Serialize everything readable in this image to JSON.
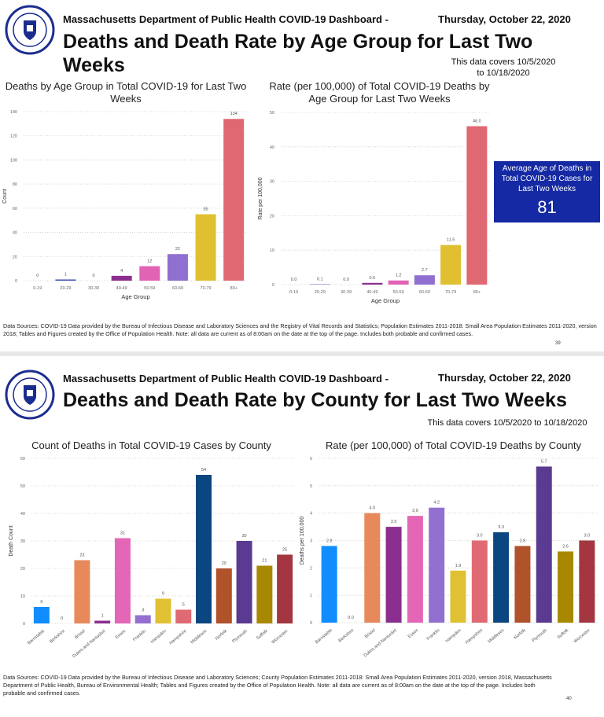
{
  "page1": {
    "header": "Massachusetts Department of Public Health COVID-19 Dashboard -",
    "date": "Thursday, October 22, 2020",
    "title": "Deaths and Death Rate by Age Group for Last Two Weeks",
    "covers": "This data covers 10/5/2020 to 10/18/2020",
    "average_box": {
      "label": "Average Age of Deaths in Total COVID-19 Cases for Last Two Weeks",
      "value": "81",
      "color": "#1429a3"
    },
    "footnote": "Data Sources: COVID-19 Data provided by the Bureau of Infectious Disease and Laboratory Sciences and the Registry of Vital Records and Statistics; Population Estimates 2011-2018: Small Area Population Estimates 2011-2020, version 2018; Tables and Figures created by the Office of Population Health. Note: all data are current as of 8:00am on the date at the top of the page. Includes both probable and confirmed cases.",
    "page_number": "39"
  },
  "page2": {
    "header": "Massachusetts Department of Public Health COVID-19 Dashboard -",
    "date": "Thursday, October 22, 2020",
    "title": "Deaths and Death Rate by County for Last Two Weeks",
    "covers": "This data covers 10/5/2020 to 10/18/2020",
    "footnote": "Data Sources: COVID-19 Data provided by the Bureau of Infectious Disease and Laboratory Sciences; County Population Estimates 2011-2018: Small Area Population Estimates 2011-2020, version 2018, Massachusetts Department of Public Health, Bureau of Environmental Health; Tables and Figures created by the Office of Population Health. Note: all data are current as of 8:00am on the date at the top of the page. Includes both probable and confirmed cases.",
    "page_number": "40"
  },
  "chart_data": [
    {
      "type": "bar",
      "title": "Deaths by Age Group in Total COVID-19 for Last Two Weeks",
      "xlabel": "Age Group",
      "ylabel": "Count",
      "ylim": [
        0,
        140
      ],
      "yticks": [
        0,
        20,
        40,
        60,
        80,
        100,
        120,
        140
      ],
      "grid": true,
      "categories": [
        "0-19",
        "20-29",
        "30-39",
        "40-49",
        "50-59",
        "60-69",
        "70-79",
        "80+"
      ],
      "values": [
        0,
        1,
        0,
        4,
        12,
        22,
        55,
        134
      ],
      "labels": [
        "0",
        "1",
        "0",
        "4",
        "12",
        "22",
        "55",
        "134"
      ],
      "colors": [
        "#3f51b5",
        "#3f51b5",
        "#3f51b5",
        "#8b2f8f",
        "#e164b4",
        "#8f6fcf",
        "#e0c030",
        "#df6872"
      ]
    },
    {
      "type": "bar",
      "title": "Rate (per 100,000) of Total COVID-19 Deaths by Age Group for Last Two Weeks",
      "xlabel": "Age Group",
      "ylabel": "Rate per 100,000",
      "ylim": [
        0,
        50
      ],
      "yticks": [
        0,
        10,
        20,
        30,
        40,
        50
      ],
      "grid": true,
      "categories": [
        "0-19",
        "20-29",
        "30-39",
        "40-49",
        "50-59",
        "60-69",
        "70-79",
        "80+"
      ],
      "values": [
        0.0,
        0.1,
        0.0,
        0.5,
        1.2,
        2.7,
        11.5,
        46.0
      ],
      "labels": [
        "0.0",
        "0.1",
        "0.0",
        "0.5",
        "1.2",
        "2.7",
        "11.5",
        "46.0"
      ],
      "colors": [
        "#3f51b5",
        "#3f51b5",
        "#3f51b5",
        "#8b2f8f",
        "#e164b4",
        "#8f6fcf",
        "#e0c030",
        "#df6872"
      ]
    },
    {
      "type": "bar",
      "title": "Count of Deaths in Total COVID-19 Cases by County",
      "xlabel": "",
      "ylabel": "Death Count",
      "ylim": [
        0,
        60
      ],
      "yticks": [
        0,
        10,
        20,
        30,
        40,
        50,
        60
      ],
      "grid": true,
      "categories": [
        "Barnstable",
        "Berkshire",
        "Bristol",
        "Dukes and Nantucket",
        "Essex",
        "Franklin",
        "Hampden",
        "Hampshire",
        "Middlesex",
        "Norfolk",
        "Plymouth",
        "Suffolk",
        "Worcester"
      ],
      "values": [
        6,
        0,
        23,
        1,
        31,
        3,
        9,
        5,
        54,
        20,
        30,
        21,
        25
      ],
      "labels": [
        "6",
        "0",
        "23",
        "1",
        "31",
        "3",
        "9",
        "5",
        "54",
        "20",
        "30",
        "21",
        "25"
      ],
      "colors": [
        "#118dff",
        "#118dff",
        "#e8895c",
        "#8a2f90",
        "#e466b6",
        "#9370d0",
        "#e1c134",
        "#e06a74",
        "#0b4680",
        "#b0532a",
        "#5b3a91",
        "#a88800",
        "#a33640"
      ]
    },
    {
      "type": "bar",
      "title": "Rate (per 100,000) of Total COVID-19 Deaths by County",
      "xlabel": "",
      "ylabel": "Deaths per 100,000",
      "ylim": [
        0,
        6
      ],
      "yticks": [
        0,
        1,
        2,
        3,
        4,
        5,
        6
      ],
      "grid": true,
      "categories": [
        "Barnstable",
        "Berkshire",
        "Bristol",
        "Dukes and Nantucket",
        "Essex",
        "Franklin",
        "Hampden",
        "Hampshire",
        "Middlesex",
        "Norfolk",
        "Plymouth",
        "Suffolk",
        "Worcester"
      ],
      "values": [
        2.8,
        0.0,
        4.0,
        3.5,
        3.9,
        4.2,
        1.9,
        3.0,
        3.3,
        2.8,
        5.7,
        2.6,
        3.0
      ],
      "labels": [
        "2.8",
        "0.0",
        "4.0",
        "3.5",
        "3.9",
        "4.2",
        "1.9",
        "3.0",
        "3.3",
        "2.8",
        "5.7",
        "2.6",
        "3.0"
      ],
      "colors": [
        "#118dff",
        "#118dff",
        "#e8895c",
        "#8a2f90",
        "#e466b6",
        "#9370d0",
        "#e1c134",
        "#e06a74",
        "#0b4680",
        "#b0532a",
        "#5b3a91",
        "#a88800",
        "#a33640"
      ]
    }
  ]
}
